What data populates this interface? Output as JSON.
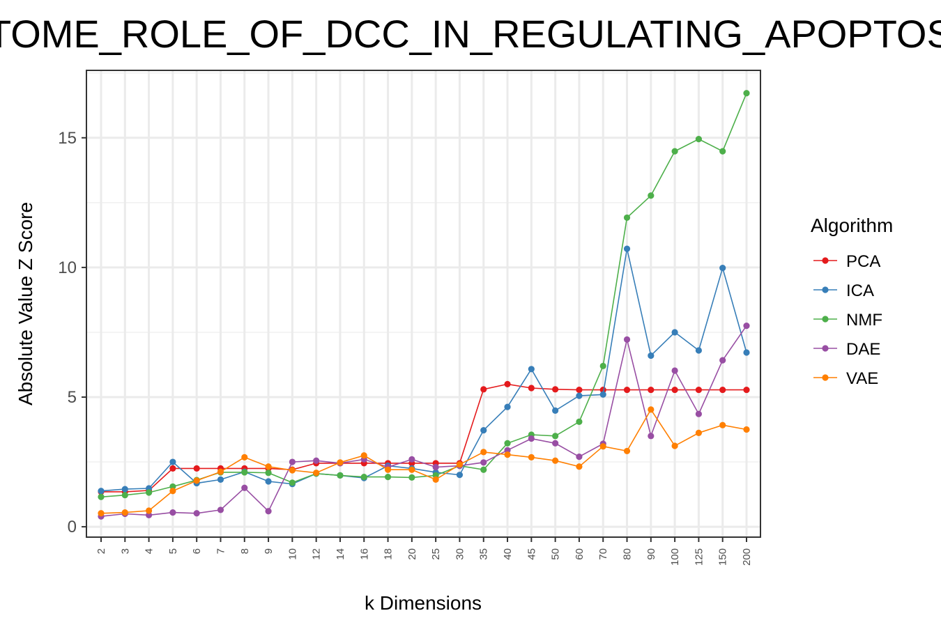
{
  "chart_data": {
    "type": "line",
    "title": "TOME_ROLE_OF_DCC_IN_REGULATING_APOPTOS",
    "xlabel": "k Dimensions",
    "ylabel": "Absolute Value Z Score",
    "categories": [
      "2",
      "3",
      "4",
      "5",
      "6",
      "7",
      "8",
      "9",
      "10",
      "12",
      "14",
      "16",
      "18",
      "20",
      "25",
      "30",
      "35",
      "40",
      "45",
      "50",
      "60",
      "70",
      "80",
      "90",
      "100",
      "125",
      "150",
      "200"
    ],
    "yticks": [
      "0",
      "5",
      "10",
      "15"
    ],
    "ylim": [
      -0.4,
      17.6
    ],
    "grid": true,
    "legend": {
      "title": "Algorithm",
      "placement": "right"
    },
    "series": [
      {
        "name": "PCA",
        "color": "#e41a1c",
        "values": [
          1.35,
          1.35,
          1.4,
          2.25,
          2.25,
          2.25,
          2.25,
          2.25,
          2.2,
          2.45,
          2.45,
          2.45,
          2.45,
          2.45,
          2.45,
          2.45,
          5.3,
          5.5,
          5.35,
          5.3,
          5.28,
          5.28,
          5.28,
          5.28,
          5.28,
          5.28,
          5.28,
          5.28
        ]
      },
      {
        "name": "ICA",
        "color": "#377eb8",
        "values": [
          1.38,
          1.45,
          1.48,
          2.5,
          1.68,
          1.82,
          2.12,
          1.75,
          1.65,
          2.05,
          1.98,
          1.88,
          2.35,
          2.25,
          2.1,
          2.0,
          3.72,
          4.62,
          6.08,
          4.48,
          5.05,
          5.1,
          10.72,
          6.6,
          7.5,
          6.8,
          9.98,
          6.72
        ]
      },
      {
        "name": "NMF",
        "color": "#4daf4a",
        "values": [
          1.15,
          1.22,
          1.32,
          1.55,
          1.8,
          2.1,
          2.1,
          2.08,
          1.7,
          2.05,
          1.98,
          1.92,
          1.92,
          1.9,
          1.98,
          2.35,
          2.2,
          3.22,
          3.55,
          3.5,
          4.05,
          6.2,
          11.92,
          12.77,
          14.48,
          14.95,
          14.48,
          16.72
        ]
      },
      {
        "name": "DAE",
        "color": "#984ea3",
        "values": [
          0.4,
          0.5,
          0.45,
          0.55,
          0.52,
          0.65,
          1.5,
          0.6,
          2.5,
          2.55,
          2.45,
          2.6,
          2.3,
          2.6,
          2.3,
          2.35,
          2.48,
          2.95,
          3.4,
          3.22,
          2.7,
          3.2,
          7.22,
          3.5,
          6.02,
          4.35,
          6.42,
          7.75
        ]
      },
      {
        "name": "VAE",
        "color": "#ff7f00",
        "values": [
          0.52,
          0.55,
          0.62,
          1.38,
          1.78,
          2.12,
          2.68,
          2.32,
          2.18,
          2.08,
          2.48,
          2.75,
          2.2,
          2.2,
          1.82,
          2.4,
          2.88,
          2.78,
          2.68,
          2.55,
          2.32,
          3.1,
          2.92,
          4.52,
          3.12,
          3.62,
          3.92,
          3.75
        ]
      }
    ]
  }
}
